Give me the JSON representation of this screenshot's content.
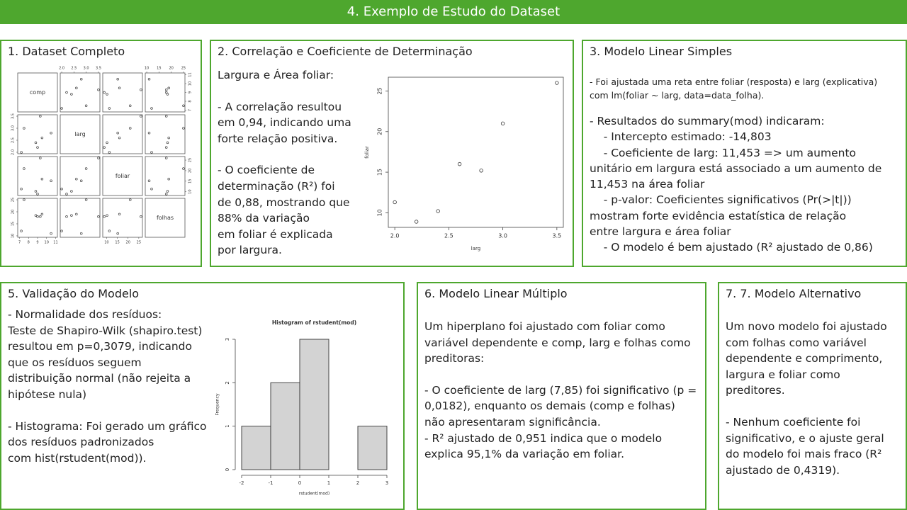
{
  "header": {
    "title": "4. Exemplo de Estudo do Dataset"
  },
  "panels": [
    {
      "title": "1. Dataset Completo",
      "chart": {
        "type": "scatter-matrix",
        "variables": [
          {
            "name": "comp",
            "values": [
              7.2,
              9,
              8.8,
              9.5,
              10.5,
              7.5,
              9.3
            ],
            "lim": [
              6.8,
              11.2
            ],
            "ticks": [
              7,
              8,
              9,
              10,
              11
            ]
          },
          {
            "name": "larg",
            "values": [
              2.0,
              2.2,
              2.4,
              2.6,
              2.8,
              3.0,
              3.5
            ],
            "lim": [
              1.94,
              3.56
            ],
            "ticks": [
              {
                "value": 2,
                "label": "2.0"
              },
              {
                "value": 2.5,
                "label": "2.5"
              },
              {
                "value": 3,
                "label": "3.0"
              },
              {
                "value": 3.5,
                "label": "3.5"
              }
            ]
          },
          {
            "name": "foliar",
            "values": [
              11.3,
              8.9,
              10.2,
              16,
              15.2,
              21,
              26
            ],
            "lim": [
              8.2,
              26.7
            ],
            "ticks": [
              10,
              15,
              20,
              25
            ]
          },
          {
            "name": "folhas",
            "values": [
              12,
              18,
              18.5,
              19,
              11,
              25,
              18
            ],
            "lim": [
              9.4,
              25.6
            ],
            "ticks": [
              10,
              15,
              20,
              25
            ]
          }
        ]
      }
    },
    {
      "title": "2. Correlação e Coeficiente de Determinação",
      "paragraphs": [
        "Largura e Área foliar:",
        "- A correlação resultou\nem 0,94, indicando uma\nforte relação positiva.",
        "- O coeficiente de\ndeterminação (R²) foi\nde 0,88, mostrando que\n88% da variação\nem foliar é explicada\npor largura."
      ],
      "chart": {
        "type": "scatter",
        "x": [
          2.0,
          2.2,
          2.4,
          2.6,
          2.8,
          3.0,
          3.5
        ],
        "y": [
          11.3,
          8.9,
          10.2,
          16,
          15.2,
          21,
          26
        ],
        "xlim": [
          1.94,
          3.56
        ],
        "ylim": [
          8.2,
          26.7
        ],
        "xticks": [
          {
            "value": 2,
            "label": "2.0"
          },
          {
            "value": 2.5,
            "label": "2.5"
          },
          {
            "value": 3,
            "label": "3.0"
          },
          {
            "value": 3.5,
            "label": "3.5"
          }
        ],
        "yticks": [
          10,
          15,
          20,
          25
        ],
        "xlabel": "larg",
        "ylabel": "foliar"
      }
    },
    {
      "title": "3. Modelo Linear Simples",
      "paragraphs": [
        "- Foi ajustada uma reta entre foliar (resposta) e larg (explicativa)\ncom lm(foliar ~ larg, data=data_folha).",
        "- Resultados do summary(mod) indicaram:\n    - Intercepto estimado: -14,803\n    - Coeficiente de larg: 11,453 => um aumento\nunitário em largura está associado a um aumento de\n11,453 na área foliar\n    - p-valor: Coeficientes significativos (Pr(>|t|))\nmostram forte evidência estatística de relação\nentre largura e área foliar\n    - O modelo é bem ajustado (R² ajustado de 0,86)"
      ]
    },
    {
      "title": "5. Validação do Modelo",
      "paragraphs": [
        "- Normalidade dos resíduos:\nTeste de Shapiro-Wilk (shapiro.test)\nresultou em p=0,3079, indicando\nque os resíduos seguem\ndistribuição normal (não rejeita a\nhipótese nula)",
        "- Histograma: Foi gerado um gráfico\ndos resíduos padronizados\ncom hist(rstudent(mod))."
      ],
      "chart": {
        "type": "histogram",
        "title": "Histogram of rstudent(mod)",
        "bins": [
          -2,
          -1,
          0,
          1,
          2,
          3
        ],
        "counts": [
          1,
          2,
          3,
          0,
          1
        ],
        "xlim": [
          -2,
          3
        ],
        "ylim": [
          0,
          3
        ],
        "xticks": [
          -2,
          -1,
          0,
          1,
          2,
          3
        ],
        "yticks": [
          0,
          1,
          2,
          3
        ],
        "xlabel": "rstudent(mod)",
        "ylabel": "Frequency",
        "color": "#d3d3d3"
      }
    },
    {
      "title": "6. Modelo Linear Múltiplo",
      "paragraphs": [
        "Um hiperplano foi ajustado com foliar como\nvariável dependente e comp, larg e folhas como\npreditoras:",
        "- O coeficiente de larg (7,85) foi significativo (p =\n0,0182), enquanto os demais (comp e folhas)\nnão apresentaram significância.\n- R² ajustado de 0,951 indica que o modelo\nexplica 95,1% da variação em foliar."
      ]
    },
    {
      "title": "7. 7. Modelo Alternativo",
      "paragraphs": [
        "Um novo modelo foi ajustado\ncom folhas como variável\ndependente e comprimento,\nlargura e foliar como\npreditores.",
        "- Nenhum coeficiente foi\nsignificativo, e o ajuste geral\ndo modelo foi mais fraco (R²\najustado de 0,4319)."
      ]
    }
  ]
}
